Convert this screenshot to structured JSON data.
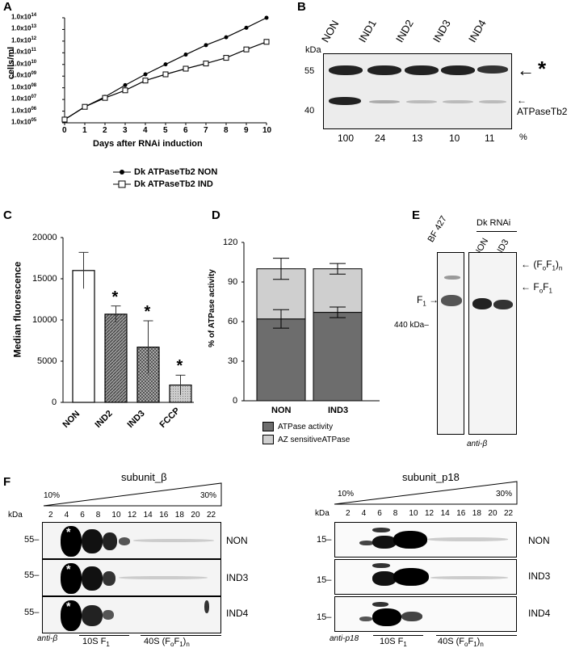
{
  "panels": {
    "A": "A",
    "B": "B",
    "C": "C",
    "D": "D",
    "E": "E",
    "F": "F"
  },
  "panelA": {
    "ylabel": "cells/ml",
    "xlabel": "Days after RNAi induction",
    "yticks": [
      "1.0x10^14",
      "1.0x10^13",
      "1.0x10^12",
      "1.0x10^11",
      "1.0x10^10",
      "1.0x10^09",
      "1.0x10^08",
      "1.0x10^07",
      "1.0x10^06",
      "1.0x10^05"
    ],
    "xticks": [
      "0",
      "1",
      "2",
      "3",
      "4",
      "5",
      "6",
      "7",
      "8",
      "9",
      "10"
    ],
    "legend": [
      "Dk ATPaseTb2 NON",
      "Dk ATPaseTb2 IND"
    ]
  },
  "panelB": {
    "kda": "kDa",
    "markers": [
      "55",
      "40"
    ],
    "lanes": [
      "NON",
      "IND1",
      "IND2",
      "IND3",
      "IND4"
    ],
    "percents": [
      "100",
      "24",
      "13",
      "10",
      "11"
    ],
    "percent_sign": "%",
    "star": "*",
    "band_label": "ATPaseTb2"
  },
  "panelC": {
    "ylabel": "Median fluorescence",
    "yticks": [
      "20000",
      "15000",
      "10000",
      "5000",
      "0"
    ],
    "categories": [
      "NON",
      "IND2",
      "IND3",
      "FCCP"
    ],
    "star": "*"
  },
  "panelD": {
    "ylabel": "% of ATPase activity",
    "yticks": [
      "120",
      "90",
      "60",
      "30",
      "0"
    ],
    "categories": [
      "NON",
      "IND3"
    ],
    "legend": [
      "ATPase activity",
      "AZ sensitiveATPase"
    ]
  },
  "panelE": {
    "lane_bf": "BF 427",
    "group": "Dk RNAi",
    "lanes": [
      "NON",
      "IND3"
    ],
    "f1": "F",
    "f1_sub": "1",
    "marker": "440 kDa",
    "fof1_n": "(F",
    "fof1": "F",
    "antibody": "anti-β"
  },
  "panelF": {
    "left": {
      "title": "subunit_β",
      "grad_low": "10%",
      "grad_high": "30%",
      "kda": "kDa",
      "fractions": [
        "2",
        "4",
        "6",
        "8",
        "10",
        "12",
        "14",
        "16",
        "18",
        "20",
        "22"
      ],
      "marker": "55",
      "rows": [
        "NON",
        "IND3",
        "IND4"
      ],
      "antibody": "anti-β",
      "f1_label": "10S F",
      "fofn_label": "40S (F"
    },
    "right": {
      "title": "subunit_p18",
      "grad_low": "10%",
      "grad_high": "30%",
      "kda": "kDa",
      "fractions": [
        "2",
        "4",
        "6",
        "8",
        "10",
        "12",
        "14",
        "16",
        "18",
        "20",
        "22"
      ],
      "marker": "15",
      "rows": [
        "NON",
        "IND3",
        "IND4"
      ],
      "antibody": "anti-p18",
      "f1_label": "10S F",
      "fofn_label": "40S (F"
    }
  },
  "chart_data": [
    {
      "type": "line",
      "xlabel": "Days after RNAi induction",
      "ylabel": "cells/ml",
      "yscale": "log",
      "x": [
        0,
        1,
        2,
        3,
        4,
        5,
        6,
        7,
        8,
        9,
        10
      ],
      "series": [
        {
          "name": "Dk ATPaseTb2 NON",
          "values": [
            200000.0,
            3000000.0,
            25000000.0,
            300000000.0,
            3000000000.0,
            25000000000.0,
            200000000000.0,
            1500000000000.0,
            8000000000000.0,
            60000000000000.0,
            500000000000000.0
          ]
        },
        {
          "name": "Dk ATPaseTb2 IND",
          "values": [
            200000.0,
            3000000.0,
            20000000.0,
            100000000.0,
            800000000.0,
            3000000000.0,
            10000000000.0,
            30000000000.0,
            100000000000.0,
            600000000000.0,
            3000000000000.0
          ]
        }
      ]
    },
    {
      "type": "bar",
      "ylabel": "Median fluorescence",
      "categories": [
        "NON",
        "IND2",
        "IND3",
        "FCCP"
      ],
      "values": [
        16000,
        10700,
        6700,
        2100
      ],
      "errors": [
        2200,
        1000,
        3200,
        1200
      ],
      "ylim": [
        0,
        20000
      ]
    },
    {
      "type": "bar",
      "stacked": true,
      "ylabel": "% of ATPase activity",
      "categories": [
        "NON",
        "IND3"
      ],
      "series": [
        {
          "name": "ATPase activity",
          "values": [
            62,
            67
          ]
        },
        {
          "name": "AZ sensitiveATPase",
          "values": [
            38,
            33
          ]
        }
      ],
      "ylim": [
        0,
        120
      ]
    }
  ]
}
